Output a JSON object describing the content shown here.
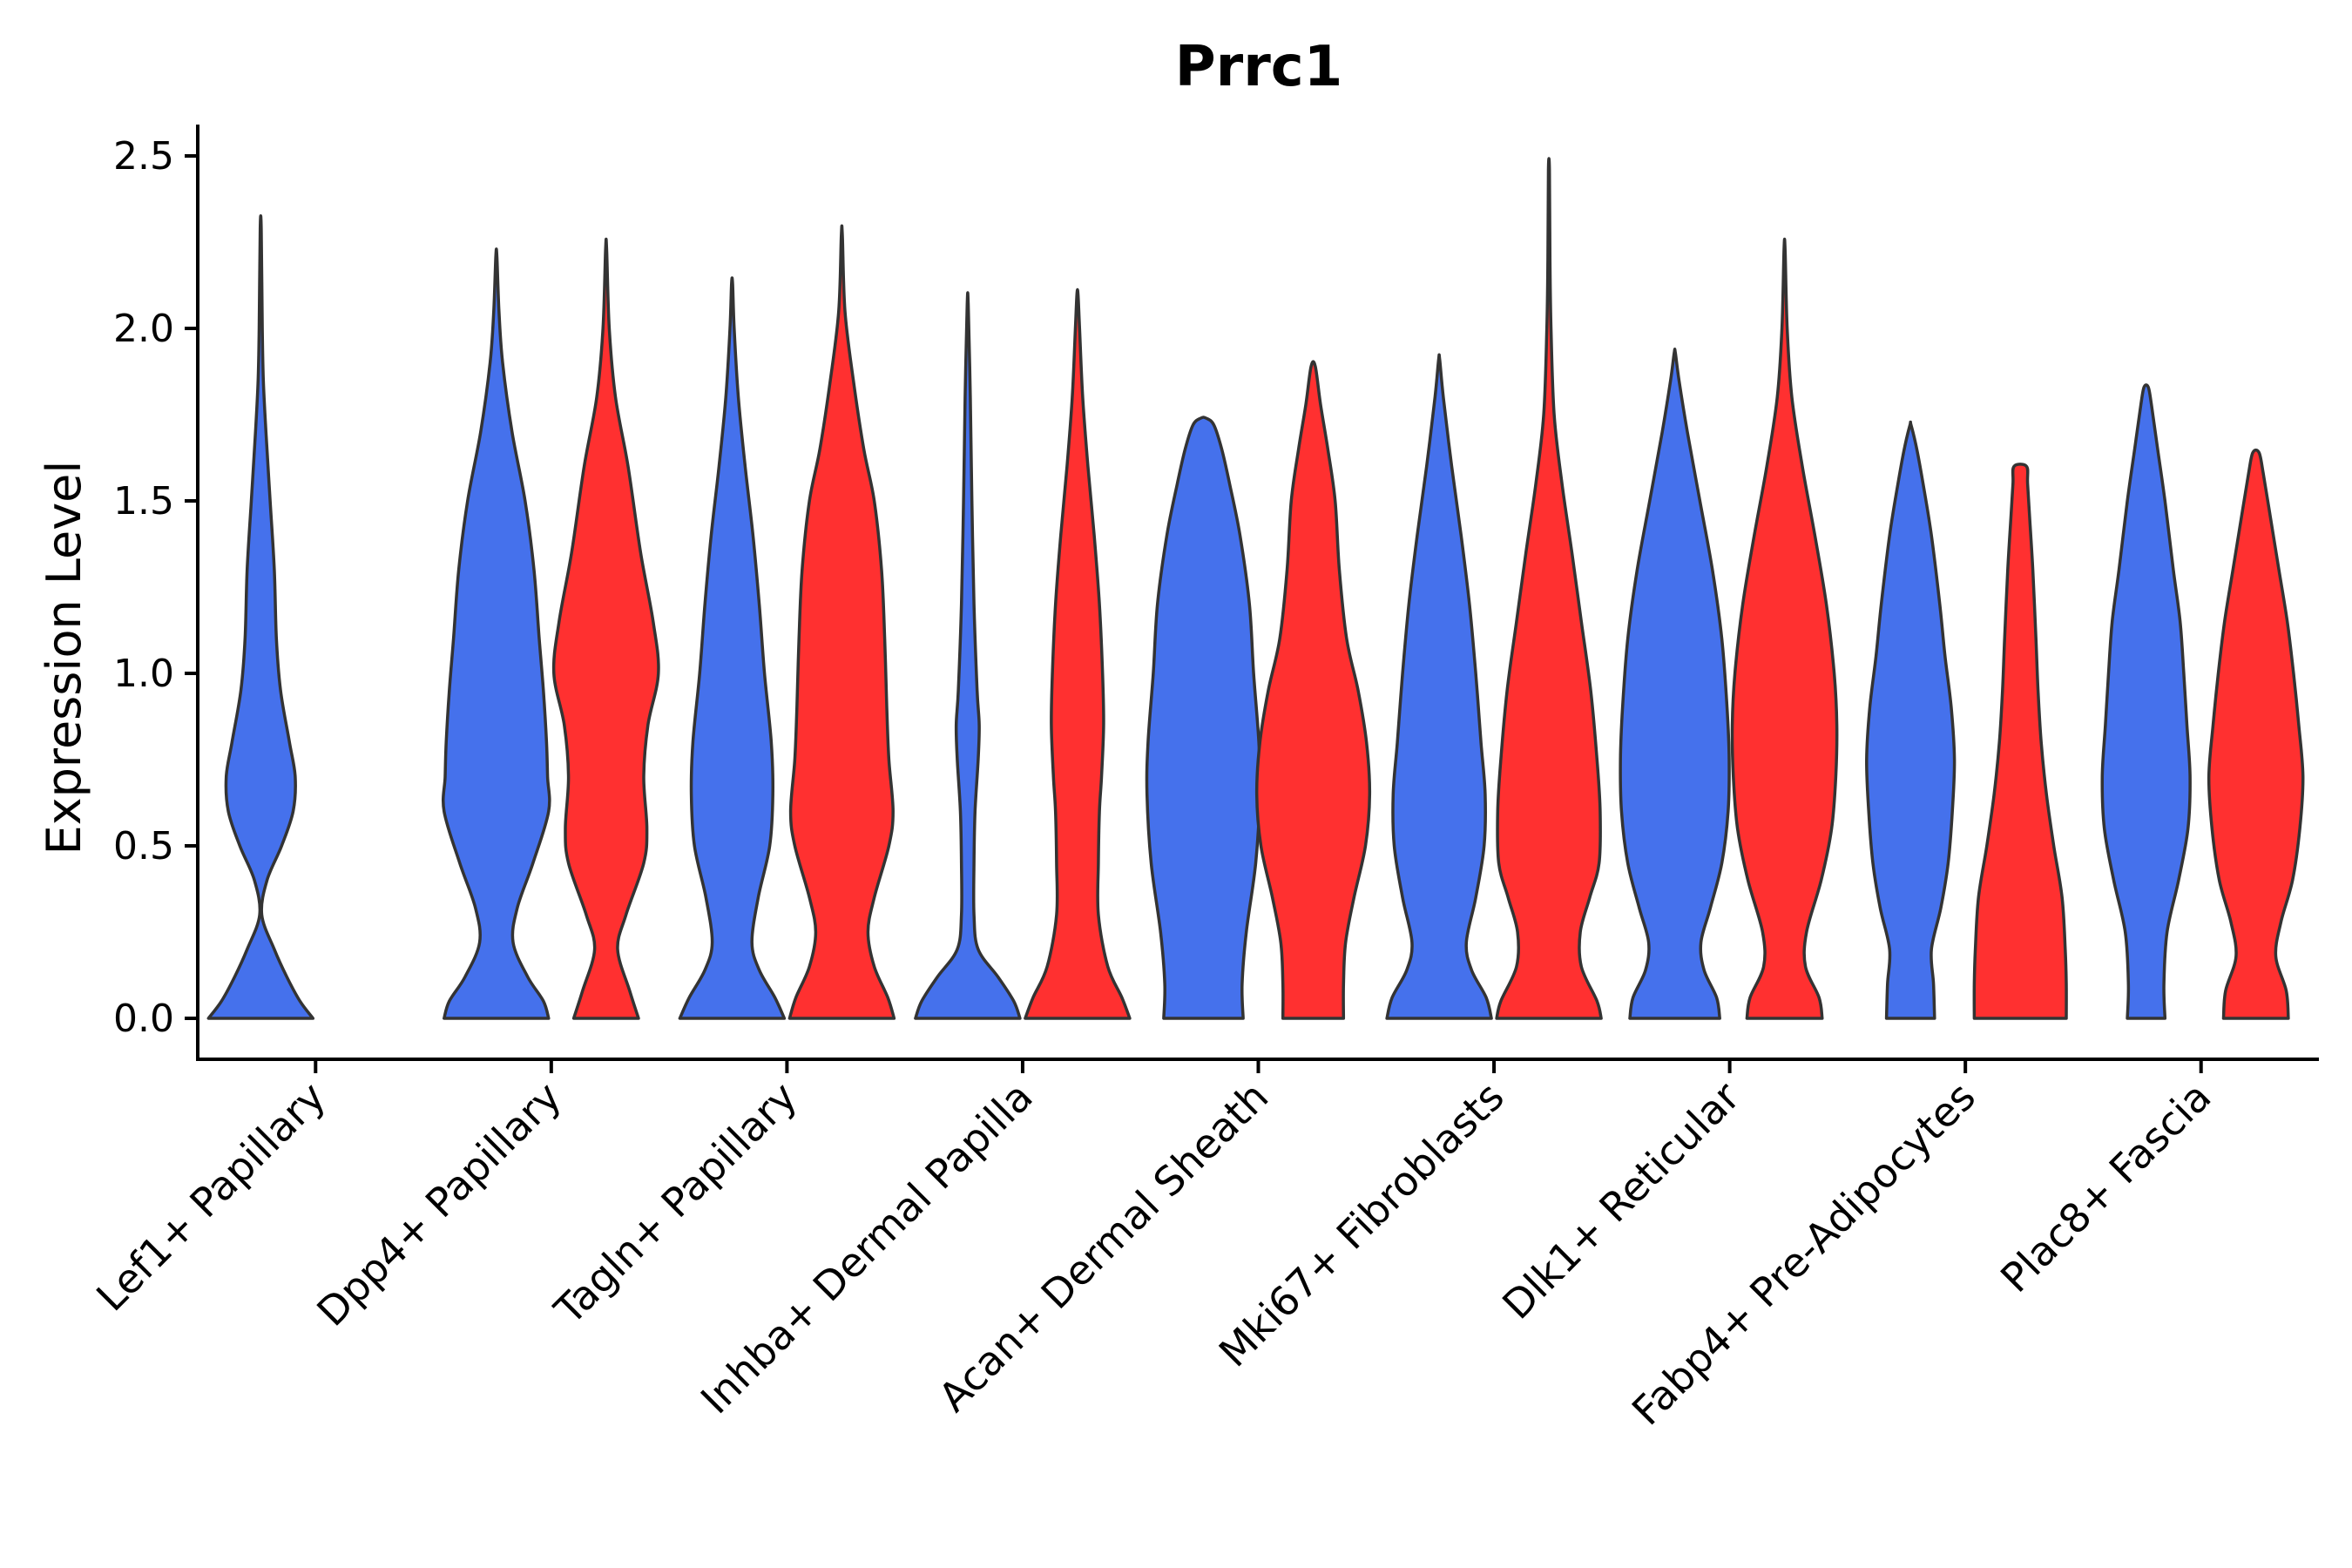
{
  "chart_data": {
    "type": "violin",
    "title": "Prrc1",
    "xlabel": "",
    "ylabel": "Expression Level",
    "ylim": [
      -0.12,
      2.6
    ],
    "yticks": [
      "0.0",
      "0.5",
      "1.0",
      "1.5",
      "2.0",
      "2.5"
    ],
    "colors": {
      "blue": "#4571ec",
      "red": "#ff3030"
    },
    "categories": [
      "Lef1+ Papillary",
      "Dpp4+ Papillary",
      "Tagln+ Papillary",
      "Inhba+ Dermal Papilla",
      "Acan+ Dermal Sheath",
      "Mki67+ Fibroblasts",
      "Dlk1+ Reticular",
      "Fabp4+ Pre-Adipocytes",
      "Plac8+ Fascia"
    ],
    "violins": [
      {
        "group": "Lef1+ Papillary",
        "split": "blue",
        "max": 2.29,
        "profile": [
          [
            0,
            1
          ],
          [
            0.05,
            0.75
          ],
          [
            0.12,
            0.5
          ],
          [
            0.2,
            0.26
          ],
          [
            0.3,
            0.02
          ],
          [
            0.4,
            0.12
          ],
          [
            0.5,
            0.4
          ],
          [
            0.6,
            0.62
          ],
          [
            0.7,
            0.66
          ],
          [
            0.8,
            0.55
          ],
          [
            0.95,
            0.38
          ],
          [
            1.1,
            0.3
          ],
          [
            1.3,
            0.26
          ],
          [
            1.5,
            0.18
          ],
          [
            1.7,
            0.1
          ],
          [
            1.85,
            0.05
          ],
          [
            2.0,
            0.03
          ],
          [
            2.29,
            0.01
          ]
        ]
      },
      {
        "group": "Dpp4+ Papillary",
        "split": "blue",
        "max": 2.21,
        "profile": [
          [
            0,
            1
          ],
          [
            0.05,
            0.9
          ],
          [
            0.12,
            0.6
          ],
          [
            0.22,
            0.32
          ],
          [
            0.32,
            0.4
          ],
          [
            0.45,
            0.7
          ],
          [
            0.6,
            1.0
          ],
          [
            0.7,
            0.98
          ],
          [
            0.8,
            0.96
          ],
          [
            0.95,
            0.9
          ],
          [
            1.1,
            0.82
          ],
          [
            1.3,
            0.72
          ],
          [
            1.5,
            0.55
          ],
          [
            1.7,
            0.3
          ],
          [
            1.9,
            0.12
          ],
          [
            2.05,
            0.05
          ],
          [
            2.21,
            0.01
          ]
        ]
      },
      {
        "group": "Dpp4+ Papillary",
        "split": "red",
        "max": 2.23,
        "profile": [
          [
            0,
            0.62
          ],
          [
            0.08,
            0.45
          ],
          [
            0.2,
            0.22
          ],
          [
            0.3,
            0.38
          ],
          [
            0.45,
            0.72
          ],
          [
            0.55,
            0.78
          ],
          [
            0.7,
            0.72
          ],
          [
            0.85,
            0.8
          ],
          [
            1.0,
            1.0
          ],
          [
            1.15,
            0.9
          ],
          [
            1.35,
            0.66
          ],
          [
            1.6,
            0.42
          ],
          [
            1.8,
            0.18
          ],
          [
            2.0,
            0.06
          ],
          [
            2.23,
            0.01
          ]
        ]
      },
      {
        "group": "Tagln+ Papillary",
        "split": "blue",
        "max": 2.13,
        "profile": [
          [
            0,
            1
          ],
          [
            0.06,
            0.82
          ],
          [
            0.14,
            0.52
          ],
          [
            0.22,
            0.38
          ],
          [
            0.35,
            0.5
          ],
          [
            0.5,
            0.72
          ],
          [
            0.65,
            0.78
          ],
          [
            0.8,
            0.75
          ],
          [
            1.0,
            0.62
          ],
          [
            1.2,
            0.52
          ],
          [
            1.4,
            0.4
          ],
          [
            1.6,
            0.25
          ],
          [
            1.8,
            0.12
          ],
          [
            2.0,
            0.04
          ],
          [
            2.13,
            0.01
          ]
        ]
      },
      {
        "group": "Tagln+ Papillary",
        "split": "red",
        "max": 2.27,
        "profile": [
          [
            0,
            1
          ],
          [
            0.06,
            0.88
          ],
          [
            0.15,
            0.62
          ],
          [
            0.25,
            0.5
          ],
          [
            0.35,
            0.62
          ],
          [
            0.5,
            0.9
          ],
          [
            0.6,
            0.98
          ],
          [
            0.75,
            0.9
          ],
          [
            0.9,
            0.86
          ],
          [
            1.1,
            0.82
          ],
          [
            1.3,
            0.76
          ],
          [
            1.5,
            0.62
          ],
          [
            1.65,
            0.42
          ],
          [
            1.85,
            0.22
          ],
          [
            2.05,
            0.06
          ],
          [
            2.27,
            0.01
          ]
        ]
      },
      {
        "group": "Inhba+ Dermal Papilla",
        "split": "blue",
        "max": 2.07,
        "profile": [
          [
            0,
            1
          ],
          [
            0.05,
            0.88
          ],
          [
            0.12,
            0.58
          ],
          [
            0.2,
            0.2
          ],
          [
            0.3,
            0.12
          ],
          [
            0.45,
            0.12
          ],
          [
            0.6,
            0.14
          ],
          [
            0.75,
            0.2
          ],
          [
            0.85,
            0.22
          ],
          [
            0.95,
            0.18
          ],
          [
            1.2,
            0.12
          ],
          [
            1.5,
            0.08
          ],
          [
            1.8,
            0.05
          ],
          [
            2.07,
            0.01
          ]
        ]
      },
      {
        "group": "Inhba+ Dermal Papilla",
        "split": "red",
        "max": 2.1,
        "profile": [
          [
            0,
            1
          ],
          [
            0.06,
            0.85
          ],
          [
            0.15,
            0.58
          ],
          [
            0.3,
            0.4
          ],
          [
            0.45,
            0.4
          ],
          [
            0.6,
            0.42
          ],
          [
            0.7,
            0.46
          ],
          [
            0.85,
            0.5
          ],
          [
            1.0,
            0.48
          ],
          [
            1.2,
            0.42
          ],
          [
            1.4,
            0.32
          ],
          [
            1.6,
            0.2
          ],
          [
            1.8,
            0.1
          ],
          [
            2.0,
            0.04
          ],
          [
            2.1,
            0.01
          ]
        ]
      },
      {
        "group": "Acan+ Dermal Sheath",
        "split": "blue",
        "max": 1.74,
        "profile": [
          [
            0,
            0.76
          ],
          [
            0.1,
            0.74
          ],
          [
            0.25,
            0.82
          ],
          [
            0.45,
            1.0
          ],
          [
            0.65,
            1.08
          ],
          [
            0.8,
            1.06
          ],
          [
            1.0,
            0.96
          ],
          [
            1.2,
            0.88
          ],
          [
            1.4,
            0.7
          ],
          [
            1.55,
            0.5
          ],
          [
            1.65,
            0.35
          ],
          [
            1.72,
            0.2
          ],
          [
            1.74,
            0.05
          ]
        ]
      },
      {
        "group": "Acan+ Dermal Sheath",
        "split": "red",
        "max": 1.89,
        "profile": [
          [
            0,
            0.58
          ],
          [
            0.1,
            0.58
          ],
          [
            0.22,
            0.62
          ],
          [
            0.35,
            0.78
          ],
          [
            0.5,
            1.0
          ],
          [
            0.65,
            1.08
          ],
          [
            0.8,
            1.02
          ],
          [
            0.95,
            0.86
          ],
          [
            1.1,
            0.64
          ],
          [
            1.3,
            0.5
          ],
          [
            1.5,
            0.42
          ],
          [
            1.65,
            0.28
          ],
          [
            1.78,
            0.14
          ],
          [
            1.89,
            0.04
          ]
        ]
      },
      {
        "group": "Mki67+ Fibroblasts",
        "split": "blue",
        "max": 1.91,
        "profile": [
          [
            0,
            1
          ],
          [
            0.06,
            0.9
          ],
          [
            0.14,
            0.62
          ],
          [
            0.22,
            0.52
          ],
          [
            0.35,
            0.7
          ],
          [
            0.5,
            0.86
          ],
          [
            0.65,
            0.88
          ],
          [
            0.8,
            0.8
          ],
          [
            1.0,
            0.7
          ],
          [
            1.2,
            0.58
          ],
          [
            1.4,
            0.42
          ],
          [
            1.6,
            0.24
          ],
          [
            1.8,
            0.08
          ],
          [
            1.91,
            0.01
          ]
        ]
      },
      {
        "group": "Mki67+ Fibroblasts",
        "split": "red",
        "max": 2.46,
        "profile": [
          [
            0,
            1
          ],
          [
            0.05,
            0.92
          ],
          [
            0.15,
            0.62
          ],
          [
            0.25,
            0.6
          ],
          [
            0.35,
            0.78
          ],
          [
            0.45,
            0.96
          ],
          [
            0.6,
            0.98
          ],
          [
            0.75,
            0.92
          ],
          [
            0.95,
            0.8
          ],
          [
            1.15,
            0.62
          ],
          [
            1.35,
            0.44
          ],
          [
            1.55,
            0.25
          ],
          [
            1.75,
            0.1
          ],
          [
            2.0,
            0.04
          ],
          [
            2.2,
            0.02
          ],
          [
            2.46,
            0.01
          ]
        ]
      },
      {
        "group": "Dlk1+ Reticular",
        "split": "blue",
        "max": 1.93,
        "profile": [
          [
            0,
            0.86
          ],
          [
            0.06,
            0.8
          ],
          [
            0.14,
            0.56
          ],
          [
            0.22,
            0.5
          ],
          [
            0.32,
            0.68
          ],
          [
            0.45,
            0.9
          ],
          [
            0.6,
            1.02
          ],
          [
            0.75,
            1.04
          ],
          [
            0.9,
            1.0
          ],
          [
            1.1,
            0.9
          ],
          [
            1.3,
            0.72
          ],
          [
            1.5,
            0.48
          ],
          [
            1.7,
            0.24
          ],
          [
            1.85,
            0.08
          ],
          [
            1.93,
            0.01
          ]
        ]
      },
      {
        "group": "Dlk1+ Reticular",
        "split": "red",
        "max": 2.23,
        "profile": [
          [
            0,
            0.72
          ],
          [
            0.06,
            0.66
          ],
          [
            0.15,
            0.4
          ],
          [
            0.25,
            0.42
          ],
          [
            0.4,
            0.7
          ],
          [
            0.55,
            0.9
          ],
          [
            0.7,
            0.98
          ],
          [
            0.85,
            1.0
          ],
          [
            1.0,
            0.95
          ],
          [
            1.2,
            0.8
          ],
          [
            1.4,
            0.58
          ],
          [
            1.6,
            0.34
          ],
          [
            1.8,
            0.14
          ],
          [
            2.0,
            0.05
          ],
          [
            2.23,
            0.01
          ]
        ]
      },
      {
        "group": "Fabp4+ Pre-Adipocytes",
        "split": "blue",
        "max": 1.72,
        "profile": [
          [
            0,
            0.46
          ],
          [
            0.1,
            0.44
          ],
          [
            0.2,
            0.4
          ],
          [
            0.32,
            0.58
          ],
          [
            0.45,
            0.72
          ],
          [
            0.6,
            0.8
          ],
          [
            0.75,
            0.84
          ],
          [
            0.9,
            0.78
          ],
          [
            1.05,
            0.66
          ],
          [
            1.2,
            0.56
          ],
          [
            1.4,
            0.4
          ],
          [
            1.55,
            0.24
          ],
          [
            1.65,
            0.12
          ],
          [
            1.72,
            0.01
          ]
        ]
      },
      {
        "group": "Fabp4+ Pre-Adipocytes",
        "split": "red",
        "max": 1.6,
        "profile": [
          [
            0,
            0.88
          ],
          [
            0.1,
            0.88
          ],
          [
            0.2,
            0.86
          ],
          [
            0.35,
            0.8
          ],
          [
            0.5,
            0.64
          ],
          [
            0.65,
            0.5
          ],
          [
            0.8,
            0.4
          ],
          [
            0.95,
            0.34
          ],
          [
            1.1,
            0.3
          ],
          [
            1.3,
            0.24
          ],
          [
            1.45,
            0.18
          ],
          [
            1.55,
            0.14
          ],
          [
            1.6,
            0.12
          ]
        ]
      },
      {
        "group": "Plac8+ Fascia",
        "split": "blue",
        "max": 1.83,
        "profile": [
          [
            0,
            0.36
          ],
          [
            0.1,
            0.34
          ],
          [
            0.25,
            0.4
          ],
          [
            0.4,
            0.62
          ],
          [
            0.55,
            0.8
          ],
          [
            0.7,
            0.84
          ],
          [
            0.85,
            0.78
          ],
          [
            1.0,
            0.72
          ],
          [
            1.15,
            0.65
          ],
          [
            1.3,
            0.52
          ],
          [
            1.5,
            0.36
          ],
          [
            1.65,
            0.22
          ],
          [
            1.78,
            0.1
          ],
          [
            1.83,
            0.04
          ]
        ]
      },
      {
        "group": "Plac8+ Fascia",
        "split": "red",
        "max": 1.64,
        "profile": [
          [
            0,
            0.62
          ],
          [
            0.08,
            0.58
          ],
          [
            0.18,
            0.38
          ],
          [
            0.28,
            0.48
          ],
          [
            0.4,
            0.7
          ],
          [
            0.55,
            0.84
          ],
          [
            0.7,
            0.9
          ],
          [
            0.85,
            0.82
          ],
          [
            1.0,
            0.72
          ],
          [
            1.15,
            0.6
          ],
          [
            1.3,
            0.44
          ],
          [
            1.45,
            0.28
          ],
          [
            1.58,
            0.14
          ],
          [
            1.64,
            0.06
          ]
        ]
      }
    ]
  }
}
